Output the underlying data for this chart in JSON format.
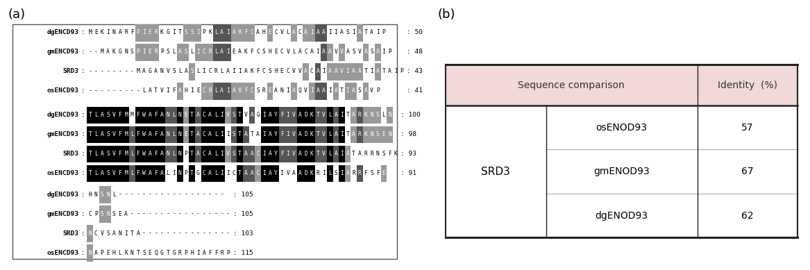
{
  "panel_a_label": "(a)",
  "panel_b_label": "(b)",
  "alignment_blocks": [
    {
      "lines": [
        {
          "name": "dgENCD93",
          "seq": "MEKINARFPIERKGITSSIPKLAIAKFCAHECVLACAIAAIIASIATAIP",
          "num": "50"
        },
        {
          "name": "gmENCD93",
          "seq": "--MAKGNSPIERPSLASLICRLAIEAKFCSHECVLACAIAAVVASVASAIP",
          "num": "48"
        },
        {
          "name": "SRD3",
          "seq": "--------MAGANVSLASLICRLAIIAKFCSHECVVACAIAAVIAATIATAIP",
          "num": "43"
        },
        {
          "name": "osENCD93",
          "seq": "---------LATVIFAHIECRLAIAKFCSREANIAQVIAAIATIASAVP",
          "num": "41"
        }
      ]
    },
    {
      "lines": [
        {
          "name": "dgENCD93",
          "seq": "TLASVFMMFWAFANLNETACALIVSTVAGIAYFIVADKTVLAITARKNSLN",
          "num": "100"
        },
        {
          "name": "gmENCD93",
          "seq": "TLASVFMLFWAFANLNETACALIISTATAIAYFIVADKTVLAITARKNSEN",
          "num": "98"
        },
        {
          "name": "SRD3",
          "seq": "TLASVFMLFWAFANLNPTACALIVSTAACIAYFIVADKTVLAIATARRNSFK",
          "num": "93"
        },
        {
          "name": "osENCD93",
          "seq": "TLASVFMLFWAFALINPTGCALIICTAACIAYIVAADKRILSIARRFSFE",
          "num": "91"
        }
      ]
    },
    {
      "lines": [
        {
          "name": "dgENCD93",
          "seq": "HNSNL------------------",
          "num": "105"
        },
        {
          "name": "gmENCD93",
          "seq": "CPSNSEA-----------------",
          "num": "105"
        },
        {
          "name": "SRD3",
          "seq": "NCVSANITA---------------",
          "num": "103"
        },
        {
          "name": "osENCD93",
          "seq": "NAPEHLKNTSEQGTGRPHIAFFRP",
          "num": "115"
        }
      ]
    }
  ],
  "table_header_bg": "#f2d9d9",
  "table_header_text_color": "#333333",
  "table_heavy_border": "#222222",
  "table_thin_border": "#aaaaaa",
  "table_data": {
    "col1_header": "Sequence comparison",
    "col2_header": "Identity  (%)",
    "row_label": "SRD3",
    "rows": [
      {
        "comparison": "osENOD93",
        "identity": "57"
      },
      {
        "comparison": "gmENOD93",
        "identity": "67"
      },
      {
        "comparison": "dgENOD93",
        "identity": "62"
      }
    ]
  },
  "seq_box_bg": "#ffffff",
  "seq_box_border": "#555555",
  "label_fontsize": 13
}
